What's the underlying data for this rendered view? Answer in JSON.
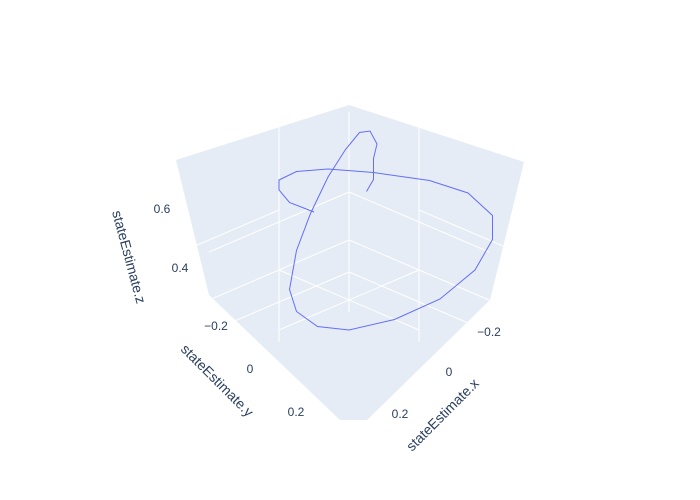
{
  "chart_data": {
    "type": "line3d",
    "title": "",
    "xlabel": "stateEstimate.x",
    "ylabel": "stateEstimate.y",
    "zlabel": "stateEstimate.z",
    "x_ticks": [
      "−0.2",
      "0",
      "0.2"
    ],
    "y_ticks": [
      "−0.2",
      "0",
      "0.2"
    ],
    "z_ticks": [
      "0.4",
      "0.6"
    ],
    "grid": true,
    "series": [
      {
        "color": "#636efa",
        "points": [
          {
            "x": 0.0,
            "y": 0.05,
            "z": 0.62
          },
          {
            "x": -0.05,
            "y": 0.02,
            "z": 0.62
          },
          {
            "x": -0.12,
            "y": -0.05,
            "z": 0.62
          },
          {
            "x": -0.2,
            "y": -0.12,
            "z": 0.6
          },
          {
            "x": -0.26,
            "y": -0.2,
            "z": 0.58
          },
          {
            "x": -0.28,
            "y": -0.25,
            "z": 0.55
          },
          {
            "x": -0.27,
            "y": -0.28,
            "z": 0.5
          },
          {
            "x": -0.22,
            "y": -0.28,
            "z": 0.45
          },
          {
            "x": -0.14,
            "y": -0.25,
            "z": 0.4
          },
          {
            "x": -0.05,
            "y": -0.2,
            "z": 0.36
          },
          {
            "x": 0.05,
            "y": -0.12,
            "z": 0.33
          },
          {
            "x": 0.1,
            "y": -0.05,
            "z": 0.32
          },
          {
            "x": 0.12,
            "y": 0.03,
            "z": 0.32
          },
          {
            "x": 0.1,
            "y": 0.1,
            "z": 0.33
          },
          {
            "x": 0.04,
            "y": 0.17,
            "z": 0.36
          },
          {
            "x": -0.04,
            "y": 0.22,
            "z": 0.4
          },
          {
            "x": -0.12,
            "y": 0.24,
            "z": 0.45
          },
          {
            "x": -0.18,
            "y": 0.23,
            "z": 0.5
          },
          {
            "x": -0.22,
            "y": 0.19,
            "z": 0.53
          },
          {
            "x": -0.22,
            "y": 0.12,
            "z": 0.56
          },
          {
            "x": -0.18,
            "y": 0.05,
            "z": 0.58
          },
          {
            "x": -0.1,
            "y": -0.03,
            "z": 0.6
          },
          {
            "x": -0.02,
            "y": -0.08,
            "z": 0.62
          },
          {
            "x": 0.06,
            "y": -0.09,
            "z": 0.64
          },
          {
            "x": 0.14,
            "y": -0.06,
            "z": 0.66
          },
          {
            "x": 0.2,
            "y": 0.0,
            "z": 0.68
          },
          {
            "x": 0.24,
            "y": 0.07,
            "z": 0.69
          },
          {
            "x": 0.25,
            "y": 0.15,
            "z": 0.7
          }
        ]
      }
    ]
  }
}
